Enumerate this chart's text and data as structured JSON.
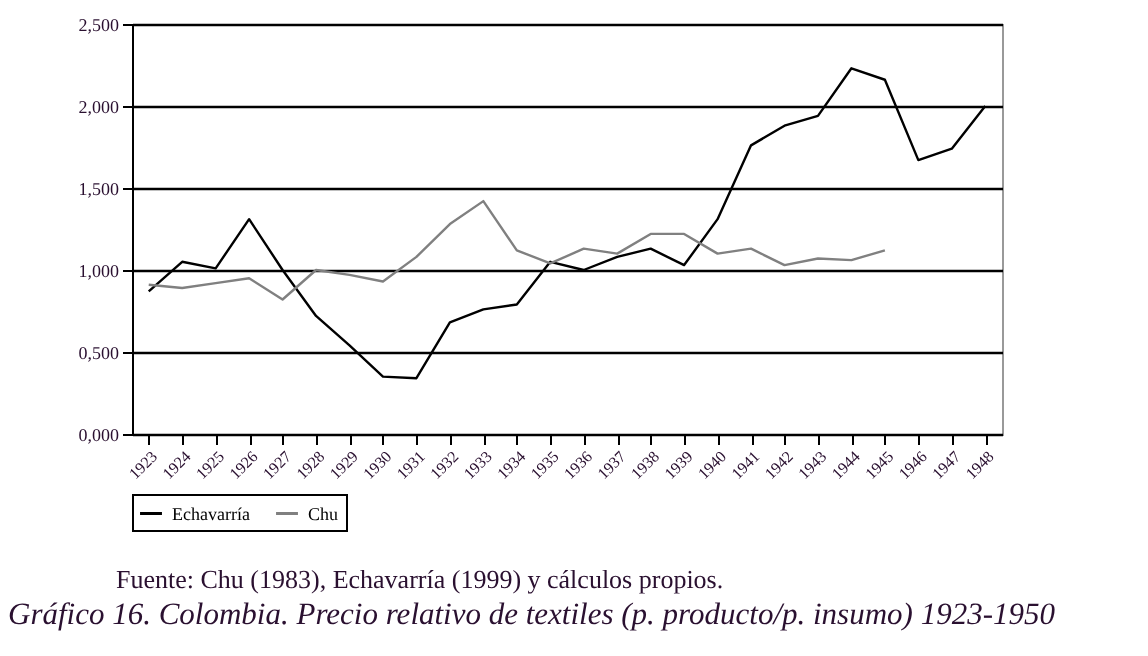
{
  "chart_data": {
    "type": "line",
    "title": "Gráfico 16. Colombia. Precio relativo de textiles (p. producto/p. insumo) 1923-1950",
    "annotations": [
      "Fuente:  Chu (1983), Echavarría (1999) y cálculos propios."
    ],
    "categories": [
      "1923",
      "1924",
      "1925",
      "1926",
      "1927",
      "1928",
      "1929",
      "1930",
      "1931",
      "1932",
      "1933",
      "1934",
      "1935",
      "1936",
      "1937",
      "1938",
      "1939",
      "1940",
      "1941",
      "1942",
      "1943",
      "1944",
      "1945",
      "1946",
      "1947",
      "1948"
    ],
    "series": [
      {
        "name": "Echavarría",
        "color": "#000000",
        "values": [
          0.87,
          1.05,
          1.01,
          1.31,
          1.0,
          0.72,
          0.54,
          0.35,
          0.34,
          0.68,
          0.76,
          0.79,
          1.05,
          1.0,
          1.08,
          1.13,
          1.03,
          1.31,
          1.76,
          1.88,
          1.94,
          2.23,
          2.16,
          1.67,
          1.74,
          2.0
        ]
      },
      {
        "name": "Chu",
        "color": "#808080",
        "values": [
          0.91,
          0.89,
          0.92,
          0.95,
          0.82,
          1.0,
          0.97,
          0.93,
          1.08,
          1.28,
          1.42,
          1.12,
          1.04,
          1.13,
          1.1,
          1.22,
          1.22,
          1.1,
          1.13,
          1.03,
          1.07,
          1.06,
          1.12,
          null,
          null,
          null
        ]
      }
    ],
    "ylim": [
      0,
      2.5
    ],
    "yticks": [
      {
        "value": 0,
        "label": "0,000"
      },
      {
        "value": 0.5,
        "label": "0,500"
      },
      {
        "value": 1,
        "label": "1,000"
      },
      {
        "value": 1.5,
        "label": "1,500"
      },
      {
        "value": 2,
        "label": "2,000"
      },
      {
        "value": 2.5,
        "label": "2,500"
      }
    ],
    "grid": "y",
    "legend": "bottom",
    "marker": "none",
    "line_style": "solid"
  }
}
